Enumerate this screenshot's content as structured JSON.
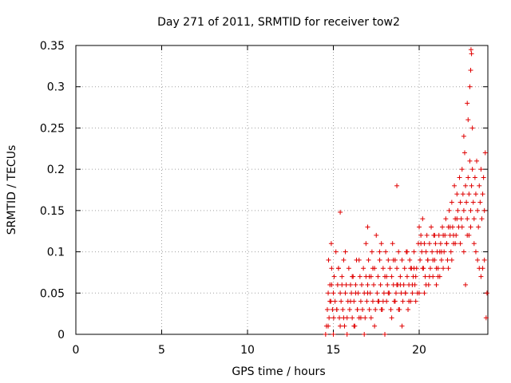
{
  "chart_data": {
    "type": "scatter",
    "title": "Day 271 of 2011, SRMTID for receiver tow2",
    "xlabel": "GPS time / hours",
    "ylabel": "SRMTID / TECUs",
    "xlim": [
      0,
      24
    ],
    "ylim": [
      0,
      0.35
    ],
    "xticks": [
      0,
      5,
      10,
      15,
      20
    ],
    "xtick_labels": [
      "0",
      "5",
      "10",
      "15",
      "20"
    ],
    "yticks": [
      0,
      0.05,
      0.1,
      0.15,
      0.2,
      0.25,
      0.3,
      0.35
    ],
    "ytick_labels": [
      "0",
      "0.05",
      "0.1",
      "0.15",
      "0.2",
      "0.25",
      "0.3",
      "0.35"
    ],
    "grid": true,
    "marker": "+",
    "color": "#e00000",
    "series": [
      {
        "name": "SRMTID",
        "x": [
          14.55,
          14.6,
          14.65,
          14.7,
          14.72,
          14.75,
          14.8,
          14.85,
          14.88,
          14.9,
          14.95,
          15.0,
          15.02,
          15.05,
          15.1,
          15.15,
          15.2,
          15.25,
          15.3,
          15.35,
          15.4,
          15.45,
          15.5,
          15.55,
          15.6,
          15.65,
          15.7,
          15.75,
          15.8,
          15.85,
          15.9,
          15.95,
          16.0,
          16.05,
          16.1,
          16.15,
          16.2,
          16.25,
          16.3,
          16.35,
          16.4,
          16.45,
          16.5,
          16.55,
          16.6,
          16.65,
          16.7,
          16.75,
          16.8,
          16.85,
          16.9,
          16.95,
          17.0,
          17.05,
          17.1,
          17.15,
          17.2,
          17.25,
          17.3,
          17.35,
          17.4,
          17.45,
          17.5,
          17.55,
          17.6,
          17.65,
          17.7,
          17.75,
          17.8,
          17.85,
          17.9,
          17.95,
          18.0,
          18.05,
          18.1,
          18.15,
          18.2,
          18.25,
          18.3,
          18.35,
          18.4,
          18.45,
          18.5,
          18.55,
          18.6,
          18.65,
          18.7,
          18.75,
          18.8,
          18.85,
          18.9,
          18.95,
          19.0,
          19.05,
          19.1,
          19.15,
          19.2,
          19.25,
          19.3,
          19.35,
          19.4,
          19.45,
          19.5,
          19.55,
          19.6,
          19.65,
          19.7,
          19.75,
          19.8,
          19.85,
          19.9,
          19.95,
          20.0,
          20.05,
          20.1,
          20.15,
          20.2,
          20.25,
          20.3,
          20.35,
          20.4,
          20.45,
          20.5,
          20.55,
          20.6,
          20.65,
          20.7,
          20.75,
          20.8,
          20.85,
          20.9,
          20.95,
          21.0,
          21.05,
          21.1,
          21.15,
          21.2,
          21.25,
          21.3,
          21.35,
          21.4,
          21.45,
          21.5,
          21.55,
          21.6,
          21.65,
          21.7,
          21.75,
          21.8,
          21.85,
          21.9,
          21.95,
          22.0,
          22.05,
          22.1,
          22.15,
          22.2,
          22.25,
          22.3,
          22.35,
          22.4,
          22.45,
          22.5,
          22.55,
          22.6,
          22.65,
          22.7,
          22.75,
          22.8,
          22.85,
          22.9,
          22.95,
          23.0,
          23.05,
          23.1,
          23.15,
          23.2,
          23.25,
          23.3,
          23.35,
          23.4,
          23.45,
          23.5,
          23.55,
          23.6,
          23.65,
          23.7,
          23.75,
          23.8,
          23.85,
          23.9,
          23.95,
          14.7,
          14.8,
          15.0,
          15.2,
          15.4,
          15.6,
          15.8,
          16.0,
          16.2,
          16.4,
          16.6,
          16.8,
          17.0,
          17.2,
          17.4,
          17.6,
          17.8,
          18.0,
          18.2,
          18.4,
          18.6,
          18.8,
          19.0,
          19.2,
          19.4,
          19.6,
          19.8,
          20.0,
          20.2,
          20.4,
          20.6,
          20.8,
          21.0,
          21.2,
          21.4,
          21.6,
          21.8,
          22.0,
          22.2,
          22.4,
          22.6,
          22.8,
          23.0,
          23.2,
          23.4,
          23.6,
          23.8,
          14.9,
          15.3,
          15.7,
          16.1,
          16.5,
          16.9,
          17.3,
          17.7,
          18.1,
          18.5,
          18.9,
          19.3,
          19.7,
          20.1,
          20.5,
          20.9,
          21.3,
          21.7,
          22.1,
          22.5,
          22.9,
          23.3,
          23.7,
          15.5,
          16.3,
          17.1,
          17.9,
          18.7,
          19.5,
          20.3,
          21.1,
          21.9,
          22.7,
          23.5,
          22.8,
          22.95,
          23.0,
          23.05,
          23.02,
          22.85,
          23.1,
          22.6,
          17.0,
          18.7,
          15.4
        ],
        "y": [
          0.0,
          0.01,
          0.03,
          0.05,
          0.09,
          0.02,
          0.06,
          0.04,
          0.11,
          0.08,
          0.03,
          0.05,
          0.02,
          0.07,
          0.04,
          0.1,
          0.03,
          0.06,
          0.08,
          0.02,
          0.05,
          0.04,
          0.07,
          0.03,
          0.09,
          0.01,
          0.05,
          0.06,
          0.02,
          0.04,
          0.08,
          0.03,
          0.06,
          0.05,
          0.02,
          0.07,
          0.04,
          0.01,
          0.06,
          0.09,
          0.03,
          0.05,
          0.02,
          0.07,
          0.04,
          0.06,
          0.03,
          0.08,
          0.05,
          0.02,
          0.07,
          0.04,
          0.06,
          0.09,
          0.03,
          0.05,
          0.07,
          0.1,
          0.04,
          0.06,
          0.08,
          0.03,
          0.12,
          0.05,
          0.07,
          0.04,
          0.09,
          0.06,
          0.11,
          0.03,
          0.08,
          0.05,
          0.07,
          0.1,
          0.04,
          0.06,
          0.09,
          0.05,
          0.08,
          0.03,
          0.07,
          0.11,
          0.06,
          0.04,
          0.09,
          0.05,
          0.08,
          0.06,
          0.1,
          0.03,
          0.07,
          0.05,
          0.09,
          0.04,
          0.06,
          0.08,
          0.05,
          0.1,
          0.07,
          0.03,
          0.06,
          0.09,
          0.04,
          0.08,
          0.05,
          0.07,
          0.1,
          0.06,
          0.04,
          0.08,
          0.05,
          0.11,
          0.13,
          0.09,
          0.12,
          0.1,
          0.14,
          0.08,
          0.11,
          0.07,
          0.1,
          0.12,
          0.09,
          0.06,
          0.11,
          0.08,
          0.13,
          0.1,
          0.07,
          0.12,
          0.09,
          0.11,
          0.06,
          0.1,
          0.08,
          0.12,
          0.07,
          0.11,
          0.09,
          0.13,
          0.08,
          0.1,
          0.12,
          0.14,
          0.11,
          0.09,
          0.13,
          0.15,
          0.12,
          0.1,
          0.16,
          0.13,
          0.11,
          0.18,
          0.14,
          0.12,
          0.17,
          0.15,
          0.13,
          0.19,
          0.16,
          0.14,
          0.2,
          0.17,
          0.15,
          0.22,
          0.18,
          0.16,
          0.14,
          0.19,
          0.17,
          0.21,
          0.15,
          0.18,
          0.2,
          0.16,
          0.14,
          0.19,
          0.17,
          0.21,
          0.15,
          0.13,
          0.18,
          0.16,
          0.2,
          0.14,
          0.17,
          0.19,
          0.15,
          0.22,
          0.02,
          0.05,
          0.01,
          0.04,
          0.0,
          0.03,
          0.01,
          0.02,
          0.0,
          0.04,
          0.01,
          0.03,
          0.02,
          0.0,
          0.05,
          0.02,
          0.01,
          0.04,
          0.03,
          0.0,
          0.05,
          0.02,
          0.04,
          0.03,
          0.01,
          0.05,
          0.04,
          0.06,
          0.07,
          0.05,
          0.08,
          0.06,
          0.07,
          0.09,
          0.08,
          0.1,
          0.12,
          0.11,
          0.13,
          0.12,
          0.14,
          0.11,
          0.1,
          0.12,
          0.13,
          0.11,
          0.09,
          0.07,
          0.09,
          0.06,
          0.08,
          0.1,
          0.07,
          0.09,
          0.11,
          0.08,
          0.1,
          0.07,
          0.09,
          0.06,
          0.1,
          0.08,
          0.11,
          0.09,
          0.12,
          0.1,
          0.08,
          0.11,
          0.13,
          0.12,
          0.1,
          0.08,
          0.06,
          0.05,
          0.07,
          0.04,
          0.06,
          0.08,
          0.05,
          0.07,
          0.09,
          0.06,
          0.08,
          0.28,
          0.3,
          0.32,
          0.34,
          0.345,
          0.26,
          0.25,
          0.24,
          0.13,
          0.18,
          0.148
        ]
      }
    ]
  }
}
